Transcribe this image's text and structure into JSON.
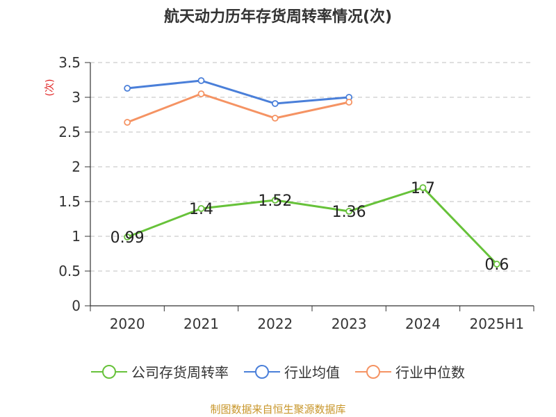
{
  "title": "航天动力历年存货周转率情况(次)",
  "source_note": "制图数据来自恒生聚源数据库",
  "colors": {
    "company": "#67c23a",
    "industry_avg": "#4a7fd9",
    "industry_median": "#f59363",
    "axis": "#333333",
    "grid": "#cccccc",
    "ylabel": "#e02020"
  },
  "chart_data": {
    "type": "line",
    "title": "航天动力历年存货周转率情况(次)",
    "xlabel": "",
    "ylabel": "(次)",
    "categories": [
      "2020",
      "2021",
      "2022",
      "2023",
      "2024",
      "2025H1"
    ],
    "ylim": [
      0,
      3.5
    ],
    "yticks": [
      "0",
      "0.5",
      "1",
      "1.5",
      "2",
      "2.5",
      "3",
      "3.5"
    ],
    "grid": true,
    "legend_position": "bottom",
    "series": [
      {
        "name": "公司存货周转率",
        "key": "company",
        "values": [
          0.99,
          1.4,
          1.52,
          1.36,
          1.7,
          0.6
        ],
        "labels": [
          "0.99",
          "1.4",
          "1.52",
          "1.36",
          "1.7",
          "0.6"
        ]
      },
      {
        "name": "行业均值",
        "key": "industry_avg",
        "values": [
          3.13,
          3.24,
          2.91,
          3.0,
          null,
          null
        ]
      },
      {
        "name": "行业中位数",
        "key": "industry_median",
        "values": [
          2.64,
          3.05,
          2.7,
          2.93,
          null,
          null
        ]
      }
    ]
  }
}
